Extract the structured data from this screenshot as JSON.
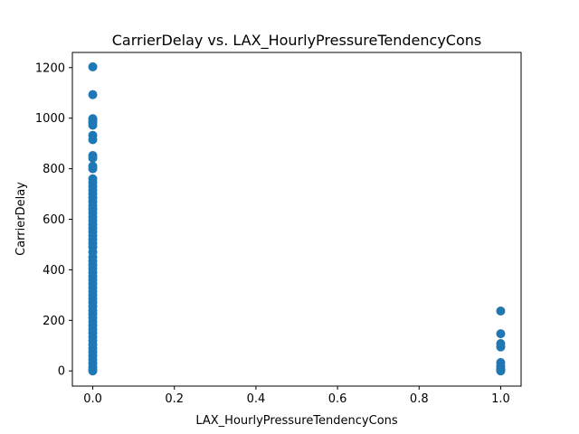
{
  "chart_data": {
    "type": "scatter",
    "title": "CarrierDelay vs. LAX_HourlyPressureTendencyCons",
    "xlabel": "LAX_HourlyPressureTendencyCons",
    "ylabel": "CarrierDelay",
    "xlim": [
      -0.05,
      1.05
    ],
    "ylim": [
      -60,
      1260
    ],
    "xticks": [
      0.0,
      0.2,
      0.4,
      0.6,
      0.8,
      1.0
    ],
    "xtick_labels": [
      "0.0",
      "0.2",
      "0.4",
      "0.6",
      "0.8",
      "1.0"
    ],
    "yticks": [
      0,
      200,
      400,
      600,
      800,
      1000,
      1200
    ],
    "ytick_labels": [
      "0",
      "200",
      "400",
      "600",
      "800",
      "1000",
      "1200"
    ],
    "grid": false,
    "marker_color": "#1f77b4",
    "series": [
      {
        "points": [
          [
            0,
            1203
          ],
          [
            0,
            1093
          ],
          [
            0,
            998
          ],
          [
            0,
            990
          ],
          [
            0,
            982
          ],
          [
            0,
            972
          ],
          [
            0,
            932
          ],
          [
            0,
            915
          ],
          [
            0,
            852
          ],
          [
            0,
            842
          ],
          [
            0,
            810
          ],
          [
            0,
            800
          ],
          [
            0,
            760
          ],
          [
            0,
            745
          ],
          [
            0,
            730
          ],
          [
            0,
            715
          ],
          [
            0,
            700
          ],
          [
            0,
            685
          ],
          [
            0,
            670
          ],
          [
            0,
            655
          ],
          [
            0,
            640
          ],
          [
            0,
            625
          ],
          [
            0,
            610
          ],
          [
            0,
            595
          ],
          [
            0,
            580
          ],
          [
            0,
            565
          ],
          [
            0,
            550
          ],
          [
            0,
            535
          ],
          [
            0,
            520
          ],
          [
            0,
            505
          ],
          [
            0,
            490
          ],
          [
            0,
            470
          ],
          [
            0,
            450
          ],
          [
            0,
            435
          ],
          [
            0,
            420
          ],
          [
            0,
            405
          ],
          [
            0,
            390
          ],
          [
            0,
            375
          ],
          [
            0,
            360
          ],
          [
            0,
            345
          ],
          [
            0,
            330
          ],
          [
            0,
            315
          ],
          [
            0,
            300
          ],
          [
            0,
            285
          ],
          [
            0,
            270
          ],
          [
            0,
            255
          ],
          [
            0,
            240
          ],
          [
            0,
            225
          ],
          [
            0,
            210
          ],
          [
            0,
            195
          ],
          [
            0,
            180
          ],
          [
            0,
            165
          ],
          [
            0,
            150
          ],
          [
            0,
            135
          ],
          [
            0,
            120
          ],
          [
            0,
            105
          ],
          [
            0,
            90
          ],
          [
            0,
            75
          ],
          [
            0,
            60
          ],
          [
            0,
            45
          ],
          [
            0,
            30
          ],
          [
            0,
            15
          ],
          [
            0,
            5
          ],
          [
            0,
            0
          ],
          [
            1,
            237
          ],
          [
            1,
            147
          ],
          [
            1,
            108
          ],
          [
            1,
            95
          ],
          [
            1,
            33
          ],
          [
            1,
            20
          ],
          [
            1,
            10
          ],
          [
            1,
            5
          ],
          [
            1,
            2
          ],
          [
            1,
            0
          ]
        ]
      }
    ]
  }
}
